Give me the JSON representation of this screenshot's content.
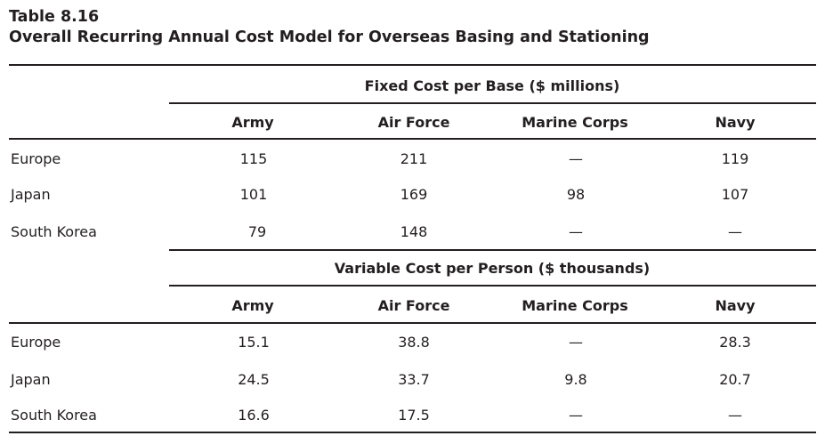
{
  "table": {
    "number": "Table 8.16",
    "title": "Overall Recurring Annual Cost Model for Overseas Basing and Stationing",
    "columns": [
      "Army",
      "Air Force",
      "Marine Corps",
      "Navy"
    ],
    "sections": [
      {
        "header": "Fixed Cost per Base ($ millions)",
        "rows": [
          {
            "label": "Europe",
            "values": [
              "115",
              "211",
              "—",
              "119"
            ]
          },
          {
            "label": "Japan",
            "values": [
              "101",
              "169",
              "98",
              "107"
            ]
          },
          {
            "label": "South Korea",
            "values": [
              "79",
              "148",
              "—",
              "—"
            ]
          }
        ]
      },
      {
        "header": "Variable Cost per Person ($ thousands)",
        "rows": [
          {
            "label": "Europe",
            "values": [
              "15.1",
              "38.8",
              "—",
              "28.3"
            ]
          },
          {
            "label": "Japan",
            "values": [
              "24.5",
              "33.7",
              "9.8",
              "20.7"
            ]
          },
          {
            "label": "South Korea",
            "values": [
              "16.6",
              "17.5",
              "—",
              "—"
            ]
          }
        ]
      }
    ]
  }
}
